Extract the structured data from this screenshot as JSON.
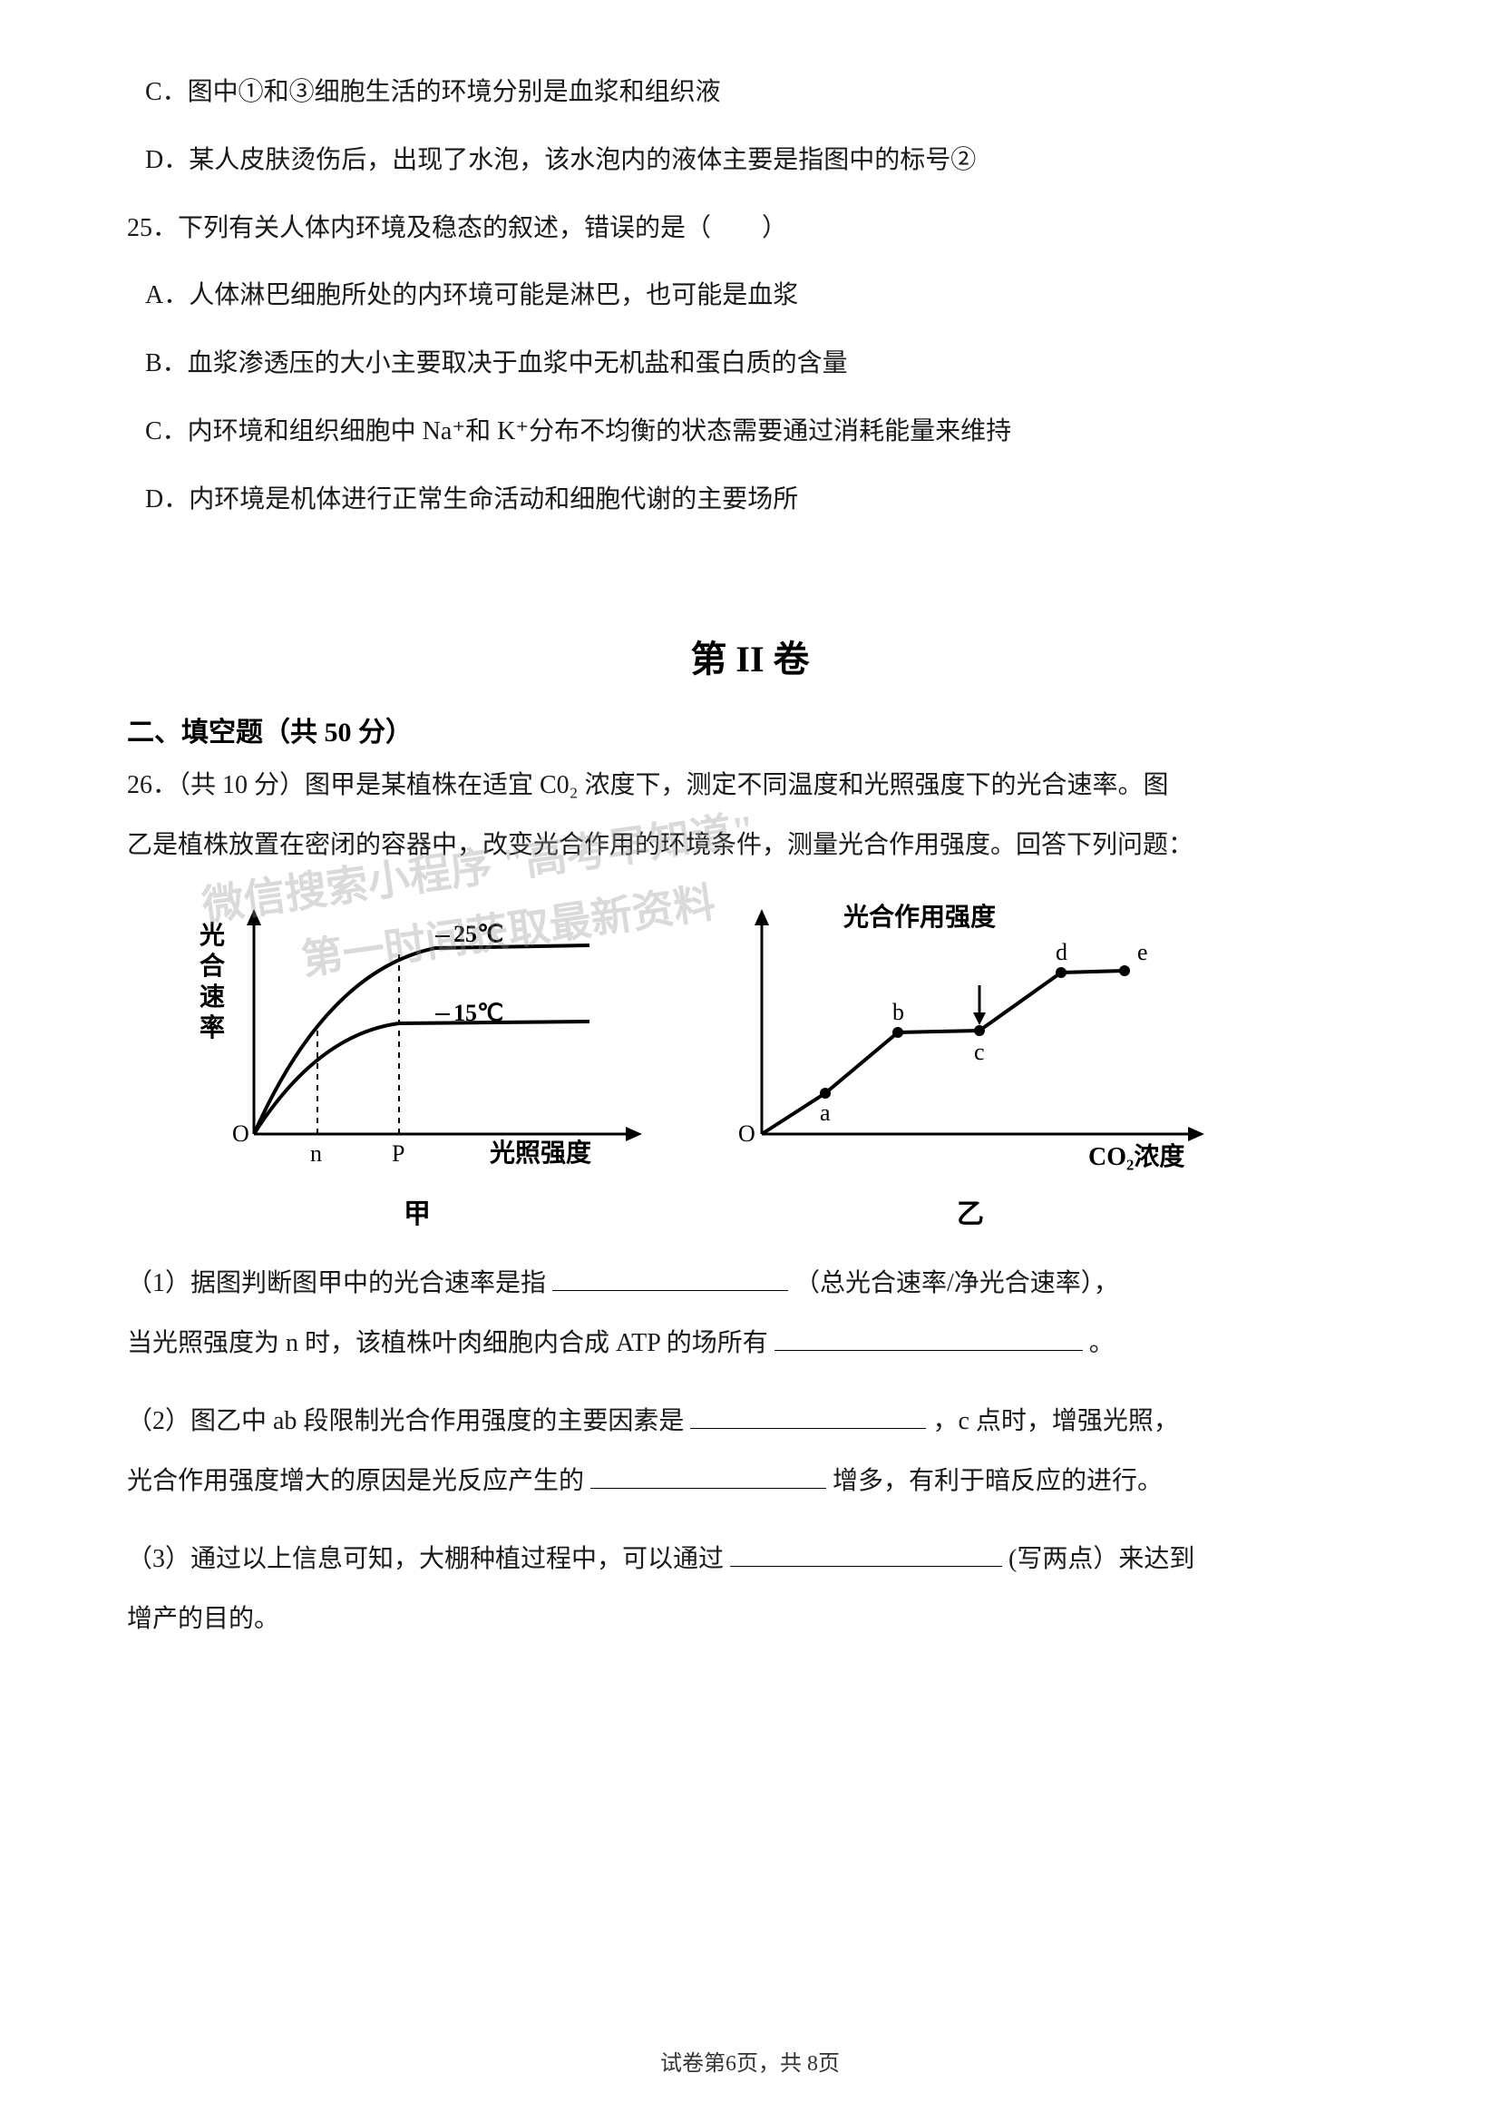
{
  "options_top": {
    "c": "C．图中①和③细胞生活的环境分别是血浆和组织液",
    "d": "D．某人皮肤烫伤后，出现了水泡，该水泡内的液体主要是指图中的标号②"
  },
  "q25": {
    "stem": "25．下列有关人体内环境及稳态的叙述，错误的是（　　）",
    "a": "A．人体淋巴细胞所处的内环境可能是淋巴，也可能是血浆",
    "b": "B．血浆渗透压的大小主要取决于血浆中无机盐和蛋白质的含量",
    "c": "C．内环境和组织细胞中 Na⁺和 K⁺分布不均衡的状态需要通过消耗能量来维持",
    "d": "D．内环境是机体进行正常生命活动和细胞代谢的主要场所"
  },
  "section2_title": "第 II 卷",
  "fill_heading": "二、填空题（共 50 分）",
  "q26": {
    "stem1": "26．（共 10 分）图甲是某植株在适宜 C0₂ 浓度下，测定不同温度和光照强度下的光合速率。图",
    "stem2": "乙是植株放置在密闭的容器中，改变光合作用的环境条件，测量光合作用强度。回答下列问题：",
    "p1a": "（1）据图判断图甲中的光合速率是指",
    "p1b": "（总光合速率/净光合速率），",
    "p1c": "当光照强度为 n 时，该植株叶肉细胞内合成 ATP 的场所有",
    "p2a": "（2）图乙中 ab 段限制光合作用强度的主要因素是",
    "p2b": "，c 点时，增强光照，",
    "p2c": "光合作用强度增大的原因是光反应产生的",
    "p2d": " 增多，有利于暗反应的进行。",
    "p3a": "（3）通过以上信息可知，大棚种植过程中，可以通过",
    "p3b": "(写两点）来达到",
    "p3c": "增产的目的。"
  },
  "chart_a": {
    "y_label_chars": [
      "光",
      "合",
      "速",
      "率"
    ],
    "x_label": "光照强度",
    "curve1_label": "25℃",
    "curve2_label": "15℃",
    "origin": "O",
    "tick_n": "n",
    "tick_p": "P",
    "caption": "甲",
    "axis_color": "#000000",
    "curve_color": "#000000",
    "font_size": 26
  },
  "chart_b": {
    "y_label": "光合作用强度",
    "x_label": "CO₂浓度",
    "origin": "O",
    "pts": [
      "a",
      "b",
      "c",
      "d",
      "e"
    ],
    "caption": "乙",
    "axis_color": "#000000",
    "curve_color": "#000000",
    "font_size": 26
  },
  "watermarks": {
    "w1": "微信搜索小程序 \"高考早知道\"",
    "w2": "第一时间获取最新资料"
  },
  "footer": "试卷第6页，共 8页"
}
